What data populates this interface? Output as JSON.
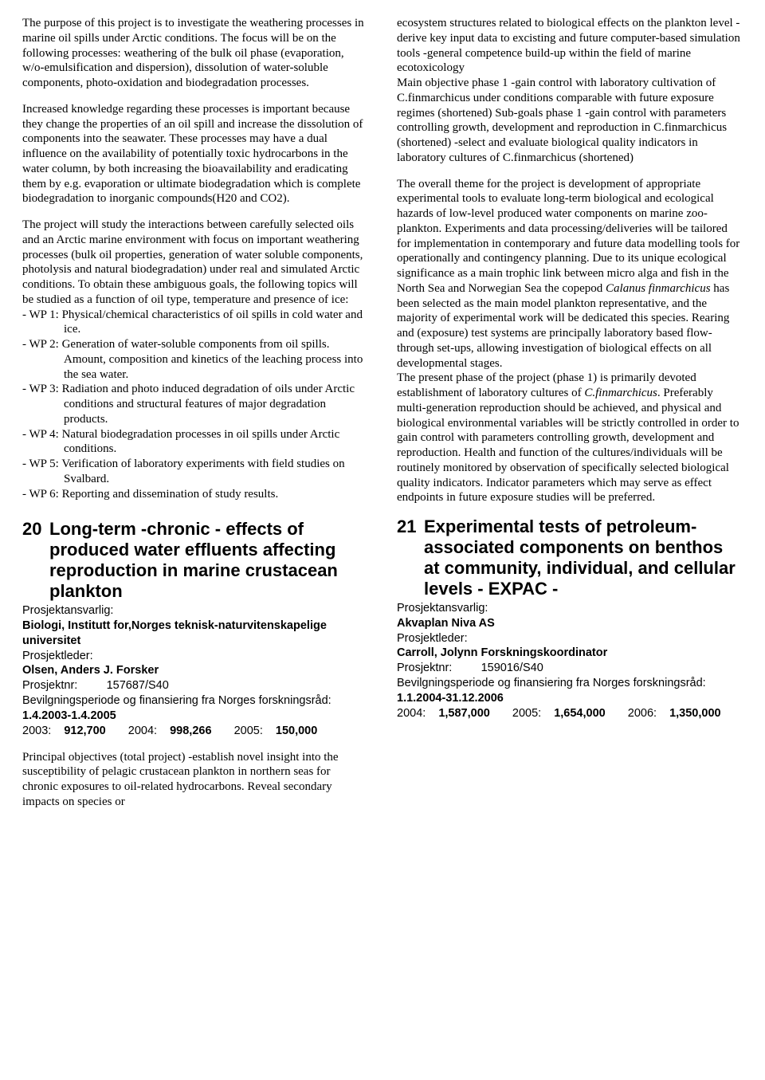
{
  "left": {
    "p1": "The purpose of this project is to investigate the weathering processes in marine oil spills under Arctic conditions. The focus will be on the following processes: weathering of the bulk oil phase (evaporation, w/o-emulsification and dispersion), dissolution of water-soluble components, photo-oxidation and biodegradation processes.",
    "p2": "Increased knowledge regarding these processes is important because they change the properties of an oil spill and increase the dissolution of components into the seawater. These processes may have a dual influence on the availability of potentially toxic hydrocarbons in the water column, by both increasing the bioavailability and eradicating them by e.g. evaporation or ultimate biodegradation which is complete biodegradation to inorganic compounds(H20 and CO2).",
    "p3": "The project will study the interactions between carefully selected oils and an Arctic marine environment with focus on important weathering processes (bulk oil properties, generation of water soluble components, photolysis and natural biodegradation) under real and simulated Arctic conditions. To obtain these ambiguous goals, the following topics will be studied as a function of oil type, temperature and presence of ice:",
    "wp1": "- WP 1: Physical/chemical characteristics of oil spills in cold water and ice.",
    "wp2": "- WP 2: Generation of water-soluble components from oil spills. Amount, composition and kinetics of the leaching process into the sea water.",
    "wp3": "- WP 3: Radiation and photo induced degradation of oils under Arctic conditions and structural features of major degradation products.",
    "wp4": "- WP 4: Natural biodegradation processes in oil spills under Arctic conditions.",
    "wp5": "- WP 5: Verification of laboratory experiments with field studies on Svalbard.",
    "wp6": "- WP 6: Reporting and dissemination of study results.",
    "proj20": {
      "num": "20",
      "title": "Long-term -chronic - effects of produced water effluents affecting reproduction in marine crustacean plankton",
      "respLabel": "Prosjektansvarlig:",
      "respVal": "Biologi, Institutt for,Norges teknisk-naturvitenskapelige universitet",
      "leaderLabel": "Prosjektleder:",
      "leaderVal": "Olsen, Anders J. Forsker",
      "pnrLabel": "Prosjektnr:",
      "pnrVal": "157687/S40",
      "fundingLabel": "Bevilgningsperiode og finansiering fra Norges forskningsråd:",
      "period": "1.4.2003-1.4.2005",
      "f1y": "2003:",
      "f1v": "912,700",
      "f2y": "2004:",
      "f2v": "998,266",
      "f3y": "2005:",
      "f3v": "150,000"
    },
    "p4": "Principal objectives (total project) -establish novel insight into the susceptibility of pelagic crustacean plankton in northern seas for chronic exposures to oil-related hydrocarbons. Reveal secondary impacts on species or"
  },
  "right": {
    "p1": "ecosystem structures related to biological effects on the plankton level -derive key input data to excisting and future computer-based simulation tools -general competence build-up within the field of marine ecotoxicology",
    "p2": " Main objective phase 1 -gain control with laboratory cultivation of C.finmarchicus under conditions comparable with future exposure regimes (shortened) Sub-goals phase 1 -gain control with parameters controlling growth, development and reproduction in C.finmarchicus (shortened) -select and evaluate biological quality indicators in laboratory cultures of C.finmarchicus (shortened)",
    "p3a": "The overall theme for the project is development of appropriate experimental tools to evaluate long-term biological and ecological hazards of low-level produced water components on marine zoo-plankton. Experiments and data processing/deliveries will be tailored for implementation in contemporary and future data modelling tools for operationally and contingency planning. Due to its unique ecological significance as a main trophic link between micro alga and fish in the North Sea and Norwegian Sea the copepod ",
    "p3i": "Calanus finmarchicus",
    "p3b": " has been selected as the main model plankton representative, and the majority of experimental work will be dedicated this species. Rearing and (exposure) test systems are principally laboratory based flow-through set-ups, allowing investigation of biological effects on all developmental stages.",
    "p4a": "The present phase of the project (phase 1) is primarily devoted establishment of laboratory cultures of ",
    "p4i": "C.finmarchicus",
    "p4b": ". Preferably multi-generation reproduction should be achieved, and physical and biological environmental variables will be strictly controlled in order to gain control with parameters controlling growth, development and reproduction. Health and function of the cultures/individuals will be routinely monitored by observation of specifically selected biological quality indicators. Indicator parameters which may serve as effect endpoints in future exposure studies will be preferred.",
    "proj21": {
      "num": "21",
      "title": "Experimental tests of petroleum-associated components on benthos at community, individual, and cellular levels - EXPAC -",
      "respLabel": "Prosjektansvarlig:",
      "respVal": "Akvaplan Niva AS",
      "leaderLabel": "Prosjektleder:",
      "leaderVal": "Carroll, Jolynn Forskningskoordinator",
      "pnrLabel": "Prosjektnr:",
      "pnrVal": "159016/S40",
      "fundingLabel": "Bevilgningsperiode og finansiering fra Norges forskningsråd:",
      "period": "1.1.2004-31.12.2006",
      "f1y": "2004:",
      "f1v": "1,587,000",
      "f2y": "2005:",
      "f2v": "1,654,000",
      "f3y": "2006:",
      "f3v": "1,350,000"
    }
  }
}
